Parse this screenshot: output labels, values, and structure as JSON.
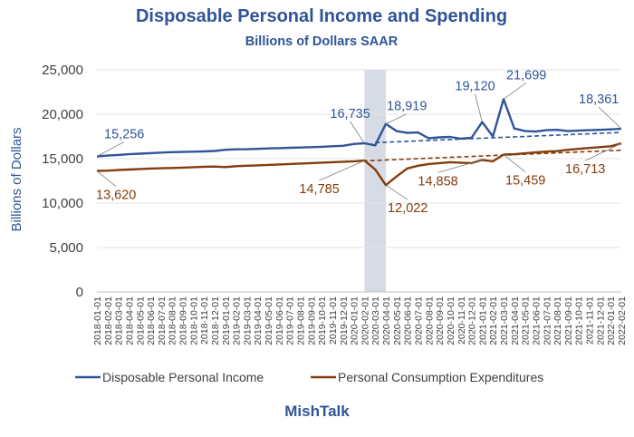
{
  "chart_data": {
    "type": "line",
    "title": "Disposable Personal Income and Spending",
    "subtitle": "Billions of Dollars SAAR",
    "ylabel": "Billions of Dollars",
    "footer": "MishTalk",
    "ylim": [
      0,
      25000
    ],
    "yticks": [
      "0",
      "5,000",
      "10,000",
      "15,000",
      "20,000",
      "25,000"
    ],
    "ytick_values": [
      0,
      5000,
      10000,
      15000,
      20000,
      25000
    ],
    "x": [
      "2018-01-01",
      "2018-02-01",
      "2018-03-01",
      "2018-04-01",
      "2018-05-01",
      "2018-06-01",
      "2018-07-01",
      "2018-08-01",
      "2018-09-01",
      "2018-10-01",
      "2018-11-01",
      "2018-12-01",
      "2019-01-01",
      "2019-02-01",
      "2019-03-01",
      "2019-04-01",
      "2019-05-01",
      "2019-06-01",
      "2019-07-01",
      "2019-08-01",
      "2019-09-01",
      "2019-10-01",
      "2019-11-01",
      "2019-12-01",
      "2020-01-01",
      "2020-02-01",
      "2020-03-01",
      "2020-04-01",
      "2020-05-01",
      "2020-06-01",
      "2020-07-01",
      "2020-08-01",
      "2020-09-01",
      "2020-10-01",
      "2020-11-01",
      "2020-12-01",
      "2021-01-01",
      "2021-02-01",
      "2021-03-01",
      "2021-04-01",
      "2021-05-01",
      "2021-06-01",
      "2021-07-01",
      "2021-08-01",
      "2021-09-01",
      "2021-10-01",
      "2021-11-01",
      "2021-12-01",
      "2022-01-01",
      "2022-02-01"
    ],
    "recession_shading": {
      "start": "2020-02-01",
      "end": "2020-04-01"
    },
    "series": [
      {
        "name": "Disposable Personal Income",
        "color": "#2f5597",
        "values": [
          15256,
          15350,
          15420,
          15500,
          15560,
          15620,
          15680,
          15730,
          15760,
          15790,
          15820,
          15870,
          16000,
          16050,
          16060,
          16100,
          16150,
          16180,
          16220,
          16260,
          16300,
          16340,
          16400,
          16450,
          16650,
          16735,
          16500,
          18919,
          18100,
          17900,
          17950,
          17300,
          17400,
          17450,
          17250,
          17350,
          19120,
          17500,
          21699,
          18400,
          18100,
          18050,
          18200,
          18250,
          18100,
          18150,
          18200,
          18250,
          18300,
          18361
        ]
      },
      {
        "name": "Personal Consumption Expenditures",
        "color": "#843c0c",
        "values": [
          13620,
          13650,
          13720,
          13780,
          13840,
          13890,
          13920,
          13950,
          13990,
          14040,
          14090,
          14110,
          14050,
          14150,
          14200,
          14250,
          14300,
          14350,
          14400,
          14450,
          14500,
          14550,
          14600,
          14650,
          14700,
          14785,
          13800,
          12022,
          13000,
          13900,
          14200,
          14400,
          14500,
          14600,
          14550,
          14500,
          14858,
          14700,
          15459,
          15500,
          15600,
          15700,
          15800,
          15850,
          16000,
          16100,
          16200,
          16300,
          16400,
          16713
        ]
      }
    ],
    "trendlines": [
      {
        "series": "Disposable Personal Income",
        "color": "#2f5597",
        "from": [
          26,
          16800
        ],
        "to": [
          49,
          17950
        ]
      },
      {
        "series": "Personal Consumption Expenditures",
        "color": "#843c0c",
        "from": [
          12,
          14100
        ],
        "to": [
          49,
          15950
        ]
      }
    ],
    "annotations": [
      {
        "text": "15,256",
        "index": 0,
        "value": 15256,
        "series": 0
      },
      {
        "text": "16,735",
        "index": 25,
        "value": 16735,
        "series": 0
      },
      {
        "text": "18,919",
        "index": 27,
        "value": 18919,
        "series": 0
      },
      {
        "text": "19,120",
        "index": 36,
        "value": 19120,
        "series": 0
      },
      {
        "text": "21,699",
        "index": 38,
        "value": 21699,
        "series": 0
      },
      {
        "text": "18,361",
        "index": 49,
        "value": 18361,
        "series": 0
      },
      {
        "text": "13,620",
        "index": 0,
        "value": 13620,
        "series": 1
      },
      {
        "text": "14,785",
        "index": 25,
        "value": 14785,
        "series": 1
      },
      {
        "text": "12,022",
        "index": 27,
        "value": 12022,
        "series": 1
      },
      {
        "text": "14,858",
        "index": 36,
        "value": 14858,
        "series": 1
      },
      {
        "text": "15,459",
        "index": 38,
        "value": 15459,
        "series": 1
      },
      {
        "text": "16,713",
        "index": 49,
        "value": 16713,
        "series": 1
      }
    ],
    "legend_position": "bottom",
    "grid": true
  }
}
